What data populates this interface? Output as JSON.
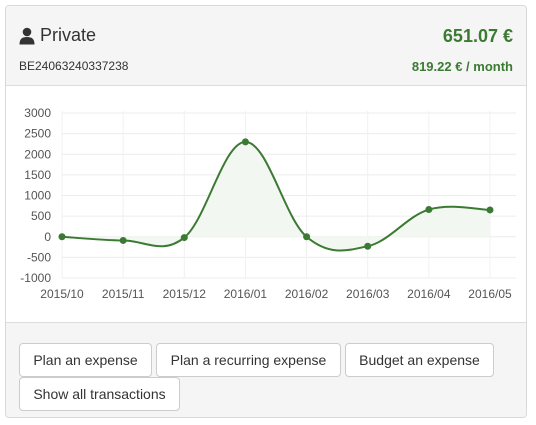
{
  "account": {
    "name": "Private",
    "iban": "BE24063240337238",
    "balance": "651.07 €",
    "monthly": "819.22 € / month",
    "icon": "user-icon",
    "accent_color": "#3b7a32"
  },
  "chart_data": {
    "type": "area",
    "categories": [
      "2015/10",
      "2015/11",
      "2015/12",
      "2016/01",
      "2016/02",
      "2016/03",
      "2016/04",
      "2016/05"
    ],
    "values": [
      0,
      -90,
      -20,
      2300,
      0,
      -230,
      660,
      650
    ],
    "yticks": [
      "3000",
      "2500",
      "2000",
      "1500",
      "1000",
      "500",
      "0",
      "-500",
      "-1000"
    ],
    "ylim": [
      -1000,
      3000
    ],
    "grid": true,
    "line_color": "#3b7a32",
    "fill_color": "#f3f7f2"
  },
  "actions": {
    "plan_expense": "Plan an expense",
    "plan_recurring": "Plan a recurring expense",
    "budget_expense": "Budget an expense",
    "show_all": "Show all transactions"
  }
}
